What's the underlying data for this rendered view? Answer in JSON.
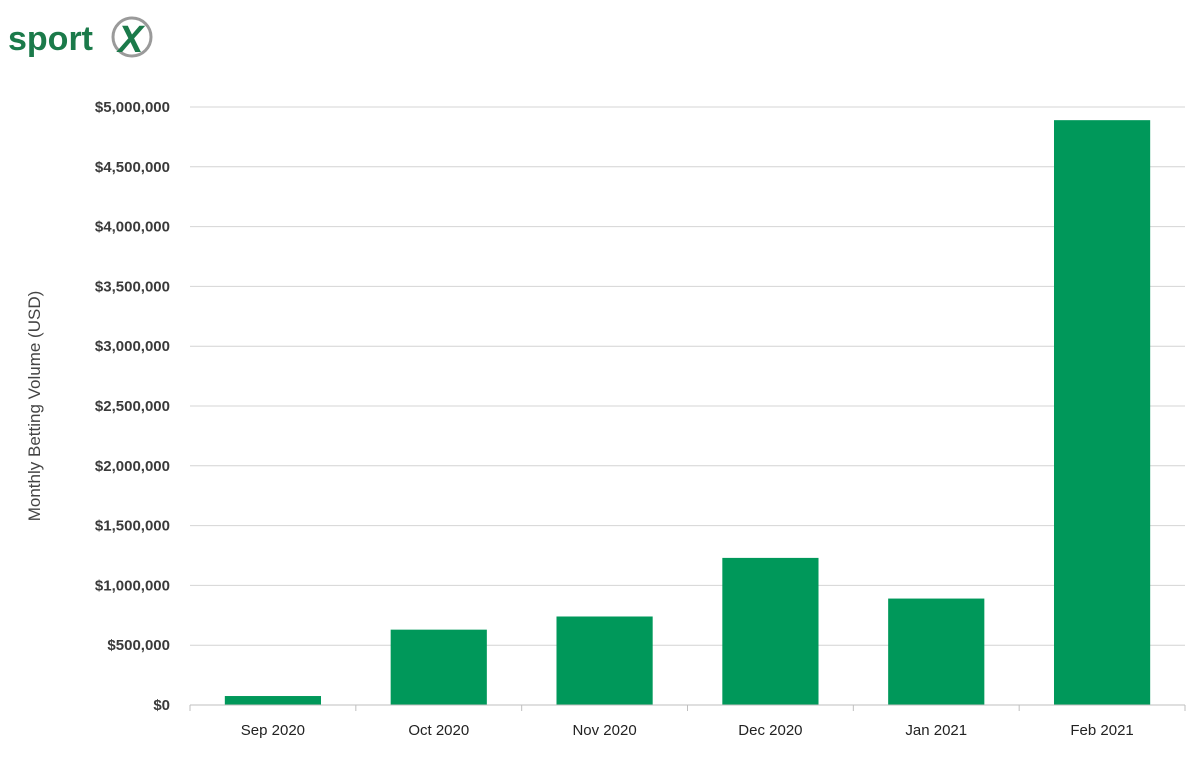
{
  "brand": {
    "name": "sport",
    "mark": "X",
    "primary_color": "#1b7a4a",
    "mark_color": "#9a9a9a"
  },
  "chart_data": {
    "type": "bar",
    "title": "",
    "xlabel": "",
    "ylabel": "Monthly Betting Volume (USD)",
    "categories": [
      "Sep 2020",
      "Oct 2020",
      "Nov 2020",
      "Dec 2020",
      "Jan 2021",
      "Feb 2021"
    ],
    "values": [
      75000,
      630000,
      740000,
      1230000,
      890000,
      4890000
    ],
    "ylim": [
      0,
      5000000
    ],
    "yticks": [
      0,
      500000,
      1000000,
      1500000,
      2000000,
      2500000,
      3000000,
      3500000,
      4000000,
      4500000,
      5000000
    ],
    "ytick_labels": [
      "$0",
      "$500,000",
      "$1,000,000",
      "$1,500,000",
      "$2,000,000",
      "$2,500,000",
      "$3,000,000",
      "$3,500,000",
      "$4,000,000",
      "$4,500,000",
      "$5,000,000"
    ],
    "bar_color": "#00985a",
    "grid": true,
    "legend": "none"
  }
}
